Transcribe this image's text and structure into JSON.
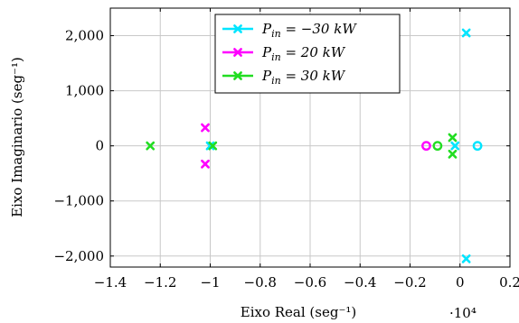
{
  "chart_data": {
    "type": "scatter",
    "xlabel": "Eixo Real (seg⁻¹)",
    "ylabel": "Eixo Imaginario (seg⁻¹)",
    "x_scale_label": "·10⁴",
    "xlim": [
      -1.4,
      0.2
    ],
    "ylim": [
      -2200,
      2500
    ],
    "grid": true,
    "legend_position": "top-center",
    "x_ticks": [
      -1.4,
      -1.2,
      -1.0,
      -0.8,
      -0.6,
      -0.4,
      -0.2,
      0,
      0.2
    ],
    "x_tick_labels": [
      "−1.4",
      "−1.2",
      "−1",
      "−0.8",
      "−0.6",
      "−0.4",
      "−0.2",
      "0",
      "0.2"
    ],
    "y_ticks": [
      -2000,
      -1000,
      0,
      1000,
      2000
    ],
    "y_tick_labels": [
      "−2,000",
      "−1,000",
      "0",
      "1,000",
      "2,000"
    ],
    "series": [
      {
        "name": "Pin = −30 kW",
        "color": "#00e5ff",
        "poles": [
          [
            0.025,
            2050
          ],
          [
            0.025,
            -2050
          ],
          [
            -1.0,
            0
          ],
          [
            -0.02,
            0
          ]
        ],
        "zeros": [
          [
            0.07,
            0
          ]
        ]
      },
      {
        "name": "Pin = 20 kW",
        "color": "#ff00ff",
        "poles": [
          [
            -1.02,
            330
          ],
          [
            -1.02,
            -330
          ]
        ],
        "zeros": [
          [
            -0.135,
            0
          ]
        ]
      },
      {
        "name": "Pin = 30 kW",
        "color": "#22dd22",
        "poles": [
          [
            -1.24,
            0
          ],
          [
            -0.99,
            0
          ],
          [
            -0.03,
            150
          ],
          [
            -0.03,
            -150
          ]
        ],
        "zeros": [
          [
            -0.09,
            0
          ]
        ]
      }
    ]
  },
  "legend": [
    {
      "prefix": "P",
      "sub": "in",
      "rest": " = −30 kW"
    },
    {
      "prefix": "P",
      "sub": "in",
      "rest": " = 20 kW"
    },
    {
      "prefix": "P",
      "sub": "in",
      "rest": " = 30 kW"
    }
  ]
}
